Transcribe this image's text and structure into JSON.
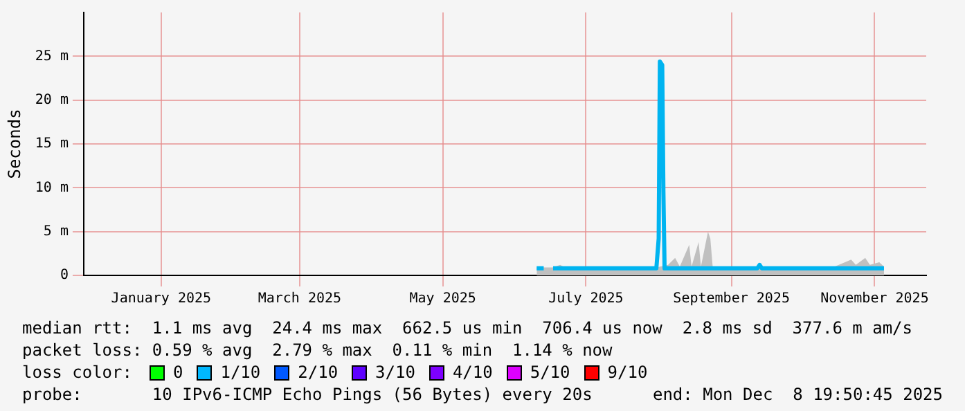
{
  "chart_data": {
    "type": "line",
    "ylabel": "Seconds",
    "xlim": [
      "2024-11-29",
      "2025-11-23"
    ],
    "xticks": [
      {
        "value": "2025-01-01",
        "label": "January 2025"
      },
      {
        "value": "2025-03-01",
        "label": "March 2025"
      },
      {
        "value": "2025-05-01",
        "label": "May 2025"
      },
      {
        "value": "2025-07-01",
        "label": "July 2025"
      },
      {
        "value": "2025-09-01",
        "label": "September 2025"
      },
      {
        "value": "2025-11-01",
        "label": "November 2025"
      }
    ],
    "ylim": [
      0,
      30
    ],
    "yticks": [
      0,
      {
        "value": 5,
        "label": "5 m"
      },
      {
        "value": 10,
        "label": "10 m"
      },
      {
        "value": 15,
        "label": "15 m"
      },
      {
        "value": 20,
        "label": "20 m"
      },
      {
        "value": 25,
        "label": "25 m"
      }
    ],
    "grid": true,
    "legend": false,
    "marker": "none",
    "line_style": "solid",
    "series": [
      {
        "type": "area",
        "color": "#c0c0c0",
        "x": [
          "2025-06-10",
          "2025-06-17",
          "2025-06-20",
          "2025-06-22",
          "2025-07-31",
          "2025-08-05",
          "2025-08-08",
          "2025-08-10",
          "2025-08-14",
          "2025-08-15",
          "2025-08-18",
          "2025-08-19",
          "2025-08-22",
          "2025-08-23",
          "2025-08-24",
          "2025-09-05",
          "2025-10-15",
          "2025-10-22",
          "2025-10-24",
          "2025-10-28",
          "2025-10-30",
          "2025-11-03",
          "2025-11-05"
        ],
        "values": [
          0.9,
          0.9,
          1.2,
          0.9,
          0.9,
          1.2,
          2,
          1,
          3.5,
          1,
          3.8,
          1,
          5,
          4.2,
          1,
          1,
          1,
          1.8,
          1.2,
          2,
          1.2,
          1.5,
          1
        ]
      },
      {
        "type": "line",
        "color": "#00b4f0",
        "x": [
          "2025-06-10",
          "2025-06-13",
          "2025-06-14",
          "2025-06-17",
          "2025-07-15",
          "2025-07-31",
          "2025-08-01",
          "2025-08-01T12:00",
          "2025-08-02T12:00",
          "2025-08-03",
          "2025-08-03T12:00",
          "2025-09-12",
          "2025-09-13",
          "2025-09-14",
          "2025-10-15",
          "2025-11-05"
        ],
        "values": [
          0.8,
          0.8,
          null,
          0.8,
          0.8,
          0.8,
          4.2,
          24.4,
          24,
          9.6,
          0.8,
          0.8,
          1.2,
          0.8,
          0.8,
          0.8
        ]
      }
    ],
    "annotations": [
      "median rtt:  1.1 ms avg  24.4 ms max  662.5 us min  706.4 us now  2.8 ms sd  377.6 m am/s",
      "packet loss: 0.59 % avg  2.79 % max  0.11 % min  1.14 % now",
      "loss color:",
      "0",
      "1/10",
      "2/10",
      "3/10",
      "4/10",
      "5/10",
      "9/10",
      "probe:       10 IPv6-ICMP Echo Pings (56 Bytes) every 20s",
      "end: Mon Dec  8 19:50:45 2025"
    ]
  }
}
